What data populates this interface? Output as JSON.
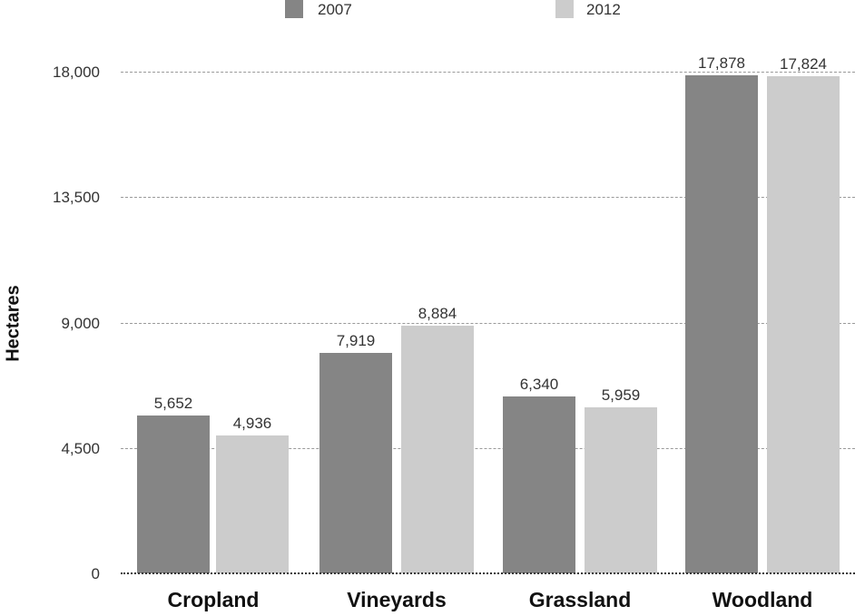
{
  "chart_data": {
    "type": "bar",
    "title": "",
    "xlabel": "",
    "ylabel": "Hectares",
    "ylim": [
      0,
      18000
    ],
    "yticks": [
      "0",
      "4,500",
      "9,000",
      "13,500",
      "18,000"
    ],
    "grid": true,
    "legend_position": "top",
    "categories": [
      "Cropland",
      "Vineyards",
      "Grassland",
      "Woodland"
    ],
    "series": [
      {
        "name": "2007",
        "color": "#858585",
        "values": [
          5652,
          7919,
          6340,
          17878
        ],
        "labels": [
          "5,652",
          "7,919",
          "6,340",
          "17,878"
        ]
      },
      {
        "name": "2012",
        "color": "#cccccc",
        "values": [
          4936,
          8884,
          5959,
          17824
        ],
        "labels": [
          "4,936",
          "8,884",
          "5,959",
          "17,824"
        ]
      }
    ]
  }
}
